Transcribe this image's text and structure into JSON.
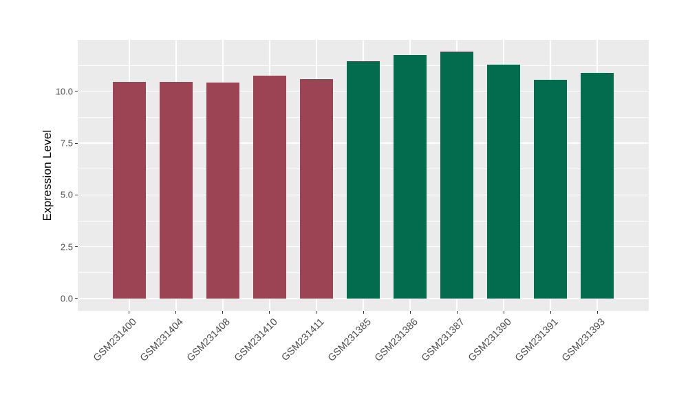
{
  "figure": {
    "background": "#ffffff",
    "panel_background": "#ebebeb",
    "grid_color": "#ffffff",
    "tick_mark_color": "#333333",
    "axis_text_color": "#4d4d4d",
    "axis_title_color": "#000000"
  },
  "chart_data": {
    "type": "bar",
    "title": "",
    "xlabel": "",
    "ylabel": "Expression Level",
    "categories": [
      "GSM231400",
      "GSM231404",
      "GSM231408",
      "GSM231410",
      "GSM231411",
      "GSM231385",
      "GSM231386",
      "GSM231387",
      "GSM231390",
      "GSM231391",
      "GSM231393"
    ],
    "values": [
      10.46,
      10.46,
      10.43,
      10.74,
      10.58,
      11.46,
      11.74,
      11.9,
      11.3,
      10.54,
      10.87
    ],
    "bar_colors": [
      "#9c4454",
      "#9c4454",
      "#9c4454",
      "#9c4454",
      "#9c4454",
      "#046c4e",
      "#046c4e",
      "#046c4e",
      "#046c4e",
      "#046c4e",
      "#046c4e"
    ],
    "group_colors": {
      "left_group": "#9c4454",
      "right_group": "#046c4e"
    },
    "ytick_labels": [
      "0.0",
      "2.5",
      "5.0",
      "7.5",
      "10.0"
    ],
    "ytick_values": [
      0,
      2.5,
      5,
      7.5,
      10
    ],
    "minor_gridlines": [
      1.25,
      3.75,
      6.25,
      8.75,
      11.25
    ],
    "ylim": [
      -0.6,
      12.48
    ],
    "bar_width_fraction": 0.7,
    "category_expand": 0.6,
    "grid": true,
    "legend_position": "none",
    "x_label_angle_deg": 45
  }
}
